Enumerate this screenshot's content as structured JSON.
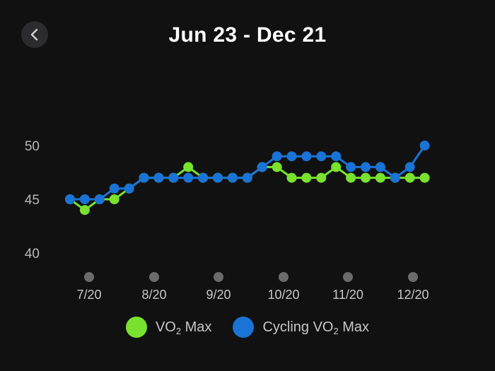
{
  "header": {
    "title": "Jun 23 - Dec 21",
    "back_icon": "chevron-left-icon"
  },
  "legend": {
    "items": [
      {
        "label_main": "VO",
        "label_sub": "2",
        "label_tail": " Max",
        "color": "#78e22e"
      },
      {
        "label_main": "Cycling VO",
        "label_sub": "2",
        "label_tail": " Max",
        "color": "#1a73d6"
      }
    ]
  },
  "chart_data": {
    "type": "line",
    "x_ticks": [
      "7/20",
      "8/20",
      "9/20",
      "10/20",
      "11/20",
      "12/20"
    ],
    "y_ticks": [
      40,
      45,
      50
    ],
    "ylim": [
      40,
      50
    ],
    "grid": false,
    "legend_position": "bottom",
    "series": [
      {
        "name": "VO₂ Max",
        "color": "#78e22e",
        "values": [
          45,
          44,
          45,
          45,
          46,
          47,
          47,
          47,
          48,
          47,
          47,
          47,
          47,
          48,
          48,
          47,
          47,
          47,
          48,
          47,
          47,
          47,
          47,
          47,
          47
        ]
      },
      {
        "name": "Cycling VO₂ Max",
        "color": "#1a73d6",
        "values": [
          45,
          45,
          45,
          46,
          46,
          47,
          47,
          47,
          47,
          47,
          47,
          47,
          47,
          48,
          49,
          49,
          49,
          49,
          49,
          48,
          48,
          48,
          47,
          48,
          50
        ]
      }
    ]
  }
}
